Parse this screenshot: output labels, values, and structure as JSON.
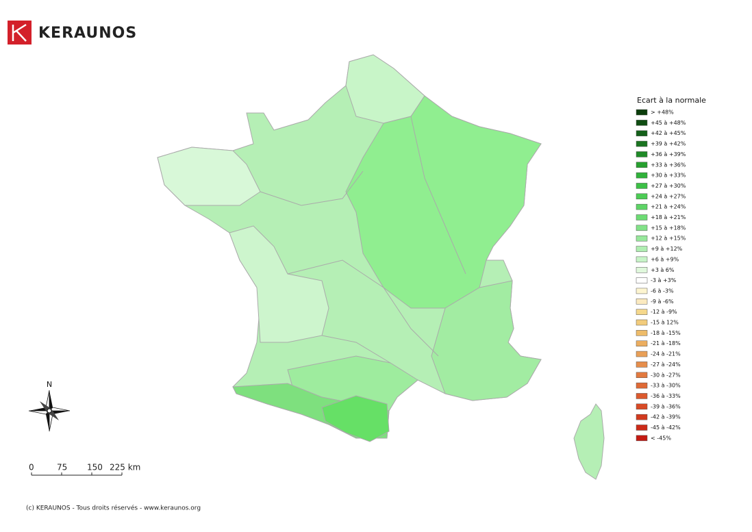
{
  "header": {
    "brand": "KERAUNOS"
  },
  "legend": {
    "title": "Ecart à la normale",
    "items": [
      {
        "label": "> +48%",
        "color": "#0b3d0b"
      },
      {
        "label": "+45 à +48%",
        "color": "#0f4d12"
      },
      {
        "label": "+42 à +45%",
        "color": "#14601a"
      },
      {
        "label": "+39 à +42%",
        "color": "#1a7420"
      },
      {
        "label": "+36 à +39%",
        "color": "#1f8a27"
      },
      {
        "label": "+33 à +36%",
        "color": "#27a02f"
      },
      {
        "label": "+30 à +33%",
        "color": "#30b23a"
      },
      {
        "label": "+27 à +30%",
        "color": "#3cc046"
      },
      {
        "label": "+24 à +27%",
        "color": "#4dcc55"
      },
      {
        "label": "+21 à +24%",
        "color": "#5ed466"
      },
      {
        "label": "+18 à +21%",
        "color": "#6ddc74"
      },
      {
        "label": "+15 à +18%",
        "color": "#82e288"
      },
      {
        "label": "+12 à +15%",
        "color": "#98e89c"
      },
      {
        "label": "+9 à +12%",
        "color": "#b0eeb2"
      },
      {
        "label": "+6 à +9%",
        "color": "#c8f4c8"
      },
      {
        "label": "+3 à 6%",
        "color": "#e0f8dc"
      },
      {
        "label": "-3 à +3%",
        "color": "#ffffff"
      },
      {
        "label": "-6 à -3%",
        "color": "#fdf5d0"
      },
      {
        "label": "-9 à -6%",
        "color": "#fbeac0"
      },
      {
        "label": "-12 à -9%",
        "color": "#f5d88c"
      },
      {
        "label": "-15 à 12%",
        "color": "#f2cc7c"
      },
      {
        "label": "-18 à -15%",
        "color": "#eebc6a"
      },
      {
        "label": "-21 à -18%",
        "color": "#ecae60"
      },
      {
        "label": "-24 à -21%",
        "color": "#e9a058"
      },
      {
        "label": "-27 à -24%",
        "color": "#e68e4c"
      },
      {
        "label": "-30 à -27%",
        "color": "#e27a40"
      },
      {
        "label": "-33 à -30%",
        "color": "#df6a36"
      },
      {
        "label": "-36 à -33%",
        "color": "#dc5a2e"
      },
      {
        "label": "-39 à -36%",
        "color": "#d84a26"
      },
      {
        "label": "-42 à -39%",
        "color": "#d23a1e"
      },
      {
        "label": "-45 à -42%",
        "color": "#cc2a18"
      },
      {
        "label": "< -45%",
        "color": "#c41a12"
      }
    ]
  },
  "compass": {
    "label": "N"
  },
  "scale": {
    "labels": [
      "0",
      "75",
      "150",
      "225 km"
    ]
  },
  "footer": {
    "text": "(c) KERAUNOS - Tous droits réservés - www.keraunos.org"
  }
}
